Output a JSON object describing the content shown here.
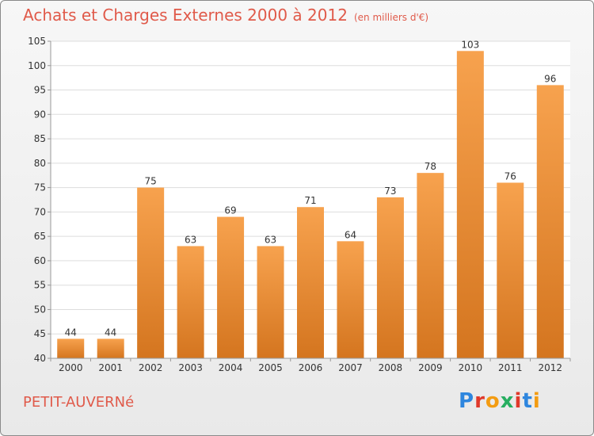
{
  "chart_data": {
    "type": "bar",
    "title": "Achats et Charges Externes 2000 à 2012",
    "subtitle": "(en milliers d'€)",
    "categories": [
      "2000",
      "2001",
      "2002",
      "2003",
      "2004",
      "2005",
      "2006",
      "2007",
      "2008",
      "2009",
      "2010",
      "2011",
      "2012"
    ],
    "values": [
      44,
      44,
      75,
      63,
      69,
      63,
      71,
      64,
      73,
      78,
      103,
      76,
      96
    ],
    "ylim": [
      40,
      105
    ],
    "yticks": [
      40,
      45,
      50,
      55,
      60,
      65,
      70,
      75,
      80,
      85,
      90,
      95,
      100,
      105
    ],
    "grid": true,
    "bar_color_top": "#f7a24e",
    "bar_color_bottom": "#d4751f"
  },
  "commune": "PETIT-AUVERNé",
  "logo": {
    "letters": [
      "P",
      "r",
      "o",
      "x",
      "i",
      "t",
      "i"
    ],
    "colors": [
      "#2e86de",
      "#e0392b",
      "#f39c12",
      "#27ae60",
      "#e0392b",
      "#2e86de",
      "#f39c12"
    ]
  }
}
